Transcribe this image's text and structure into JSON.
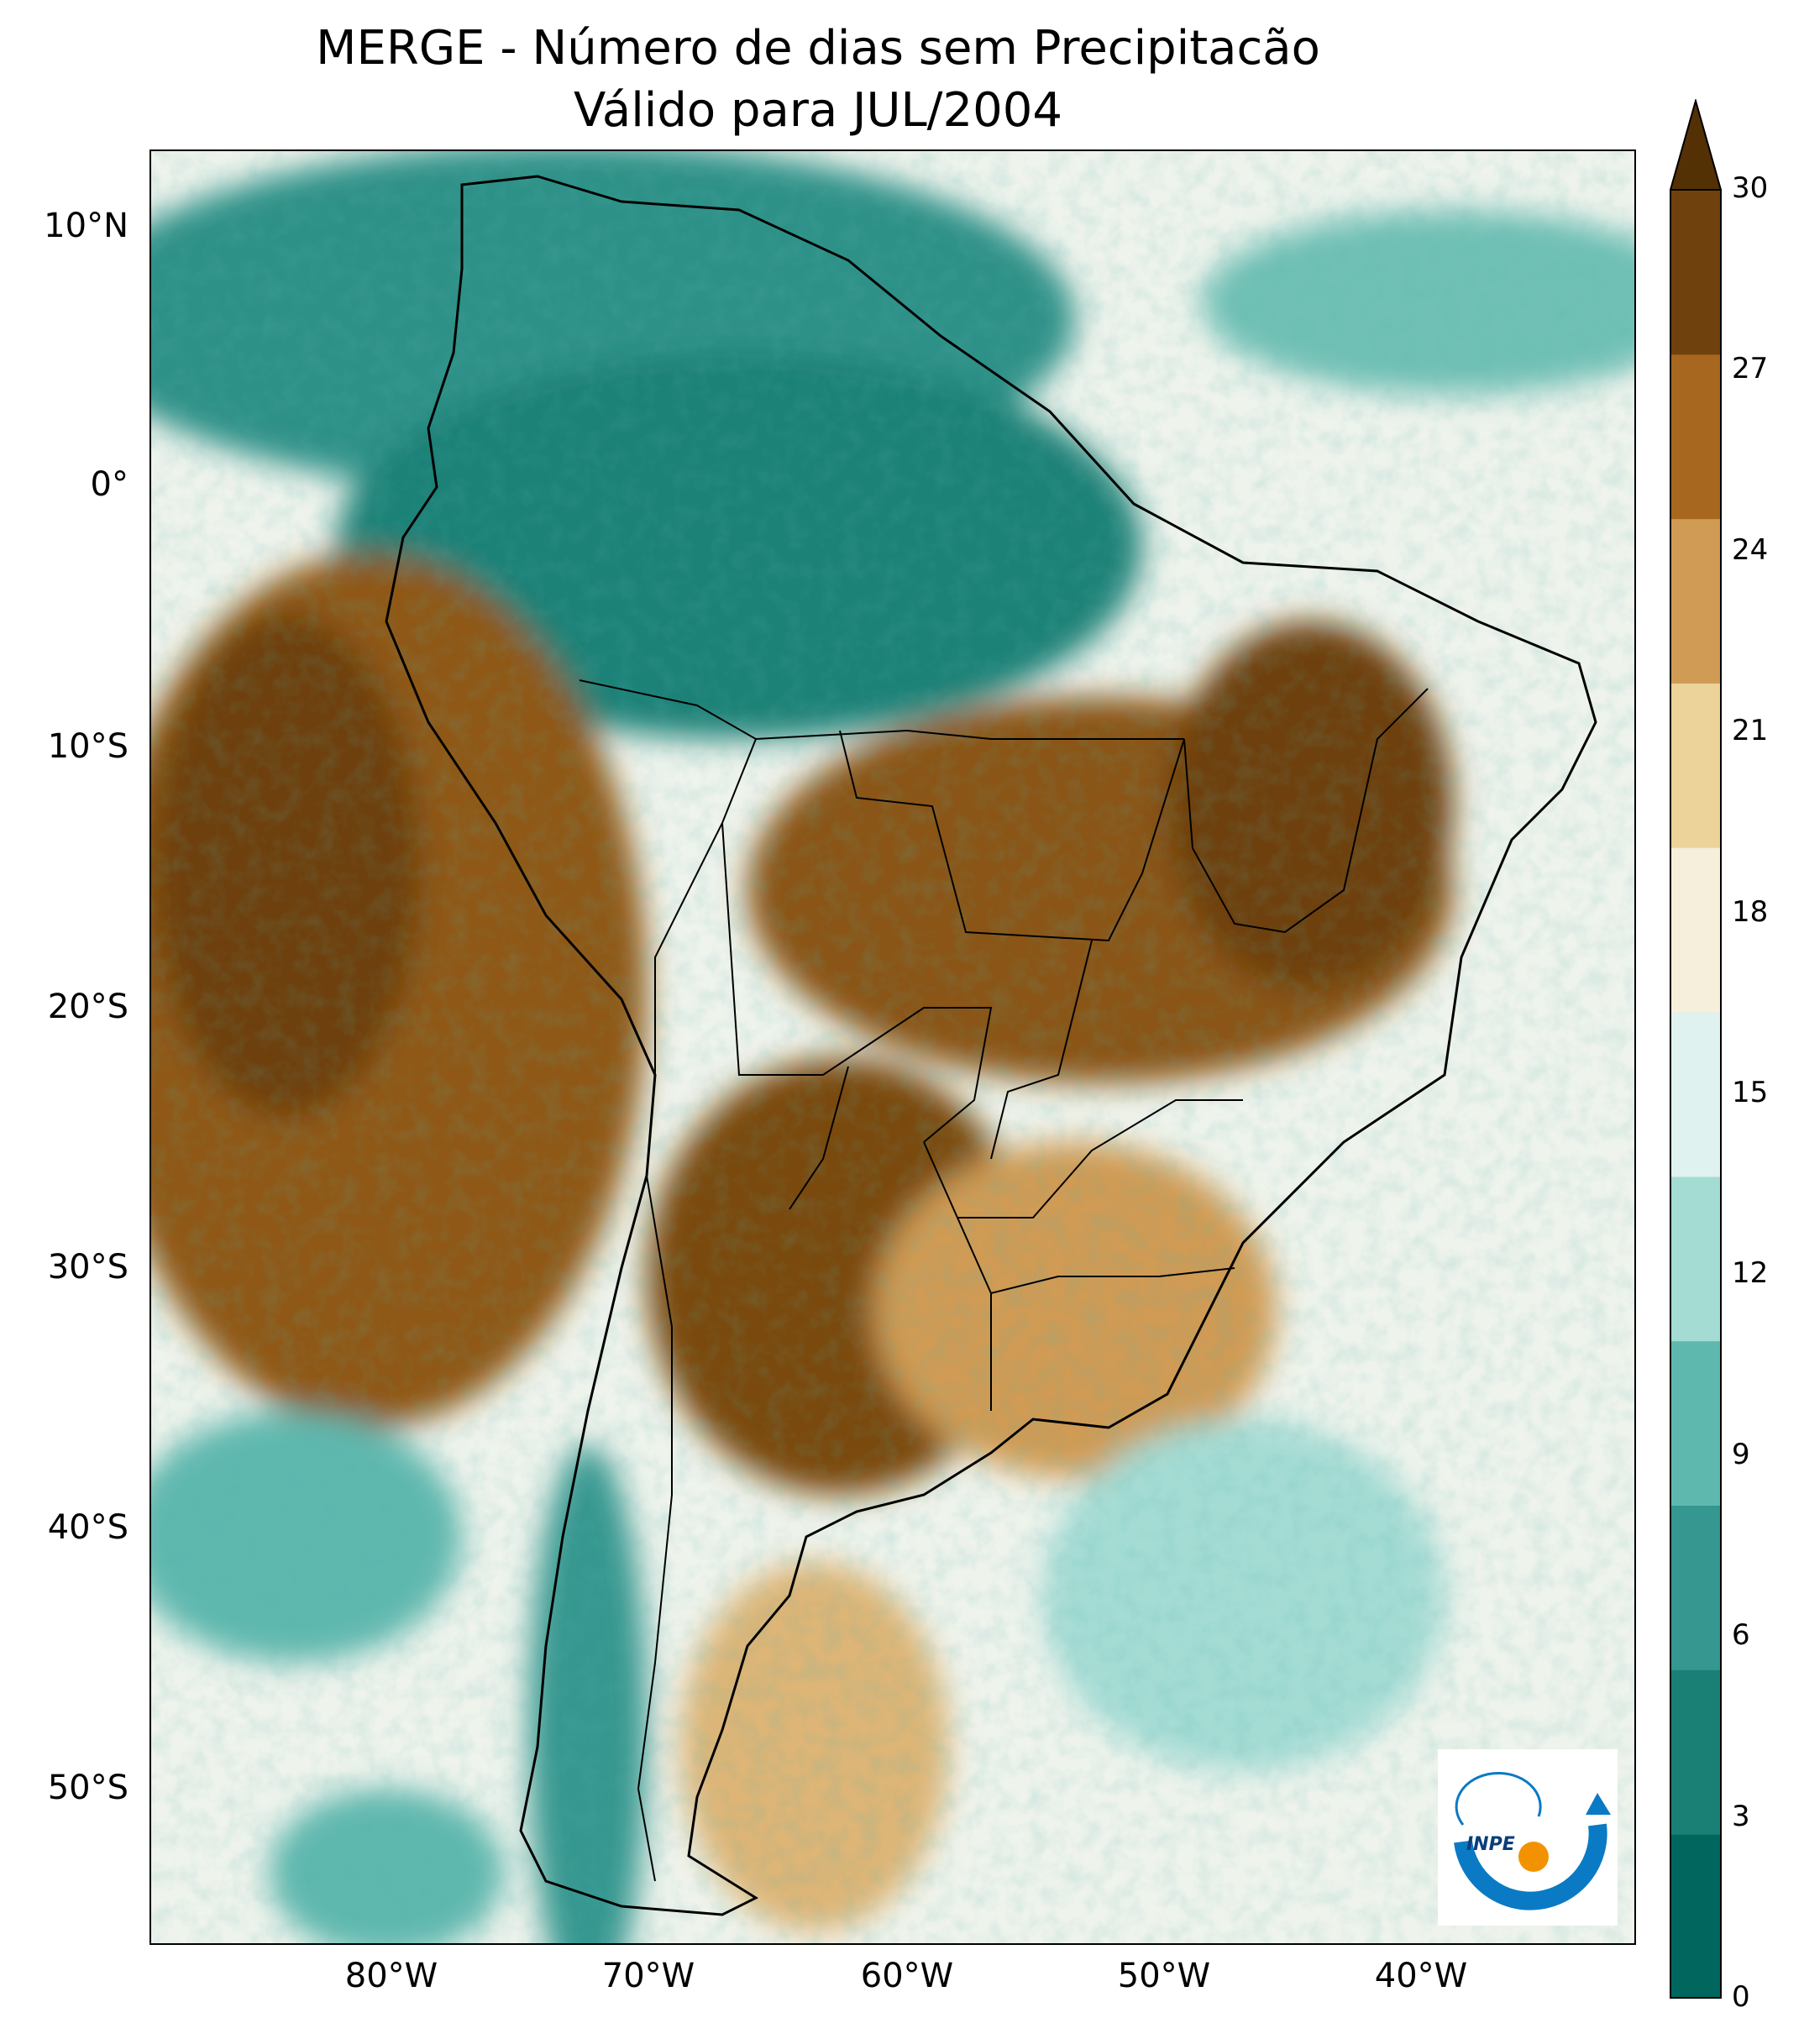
{
  "title_line1": "MERGE - Número de dias sem Precipitacão",
  "title_line2": "Válido para JUL/2004",
  "lat_labels": [
    "10°N",
    "0°",
    "10°S",
    "20°S",
    "30°S",
    "40°S",
    "50°S"
  ],
  "lon_labels": [
    "80°W",
    "70°W",
    "60°W",
    "50°W",
    "40°W"
  ],
  "colorbar": {
    "ticks": [
      "0",
      "3",
      "6",
      "9",
      "12",
      "15",
      "18",
      "21",
      "24",
      "27",
      "30"
    ],
    "colors": [
      "#01665e",
      "#1a8076",
      "#35978f",
      "#5fb8ae",
      "#a4dcd4",
      "#dff2ef",
      "#f6efdc",
      "#ebd39a",
      "#cf9b55",
      "#a7671f",
      "#6e410d"
    ],
    "extend_color": "#543005"
  },
  "logo_text": "INPE",
  "palette": {
    "ocean_light": "#f3f0e4",
    "teal_dark": "#1a8076",
    "brown_dark": "#6e410d"
  }
}
